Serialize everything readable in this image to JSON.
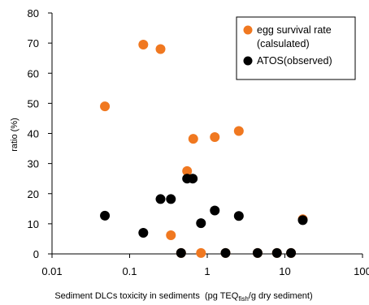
{
  "chart_data": {
    "type": "scatter",
    "title": "",
    "xlabel": {
      "prefix": "Sediment DLCs toxicity in sediments  (pg TEQ",
      "subscript": "fish",
      "suffix": "/g dry sediment)"
    },
    "ylabel": "ratio (%)",
    "xscale": "log",
    "xlim": [
      0.01,
      100
    ],
    "ylim": [
      0,
      80
    ],
    "x_ticks": [
      0.01,
      0.1,
      1,
      10,
      100
    ],
    "x_tick_labels": [
      "0.01",
      "0.1",
      "1",
      "10",
      "100"
    ],
    "y_ticks": [
      0,
      10,
      20,
      30,
      40,
      50,
      60,
      70,
      80
    ],
    "y_tick_labels": [
      "0",
      "10",
      "20",
      "30",
      "40",
      "50",
      "60",
      "70",
      "80"
    ],
    "grid": false,
    "legend_position": "top-right",
    "series": [
      {
        "name": "egg survival rate",
        "name_line2": "(calsulated)",
        "color": "#f07820",
        "points": [
          {
            "x": 0.048,
            "y": 49.0
          },
          {
            "x": 0.15,
            "y": 69.5
          },
          {
            "x": 0.25,
            "y": 68.0
          },
          {
            "x": 0.34,
            "y": 6.2
          },
          {
            "x": 0.46,
            "y": 0.3
          },
          {
            "x": 0.55,
            "y": 27.5
          },
          {
            "x": 0.66,
            "y": 38.2
          },
          {
            "x": 0.83,
            "y": 0.3
          },
          {
            "x": 1.25,
            "y": 38.8
          },
          {
            "x": 1.72,
            "y": 0.3
          },
          {
            "x": 2.55,
            "y": 40.8
          },
          {
            "x": 4.45,
            "y": 0.3
          },
          {
            "x": 7.9,
            "y": 0.3
          },
          {
            "x": 12.0,
            "y": 0.3
          },
          {
            "x": 17.0,
            "y": 11.5
          }
        ]
      },
      {
        "name": "ATOS(observed)",
        "color": "#000000",
        "points": [
          {
            "x": 0.048,
            "y": 12.7
          },
          {
            "x": 0.15,
            "y": 7.0
          },
          {
            "x": 0.25,
            "y": 18.2
          },
          {
            "x": 0.34,
            "y": 18.2
          },
          {
            "x": 0.46,
            "y": 0.3
          },
          {
            "x": 0.55,
            "y": 25.0
          },
          {
            "x": 0.65,
            "y": 25.0
          },
          {
            "x": 0.83,
            "y": 10.2
          },
          {
            "x": 1.25,
            "y": 14.4
          },
          {
            "x": 1.72,
            "y": 0.3
          },
          {
            "x": 2.55,
            "y": 12.6
          },
          {
            "x": 4.45,
            "y": 0.3
          },
          {
            "x": 7.9,
            "y": 0.3
          },
          {
            "x": 12.0,
            "y": 0.3
          },
          {
            "x": 17.0,
            "y": 11.2
          }
        ]
      }
    ]
  }
}
